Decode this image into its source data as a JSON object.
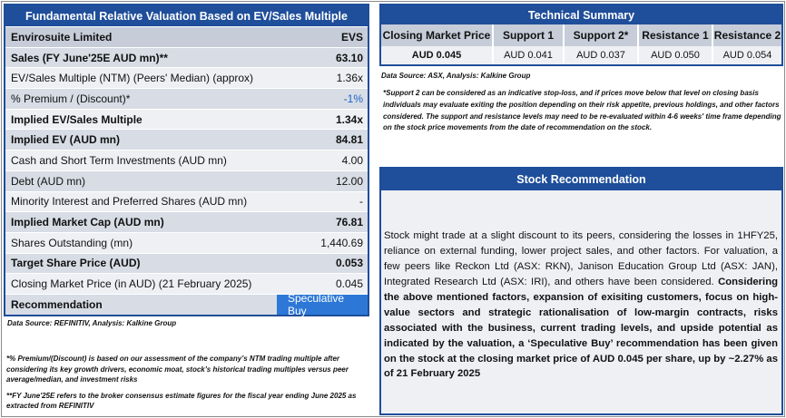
{
  "valuation": {
    "title": "Fundamental Relative Valuation Based on EV/Sales Multiple",
    "company": "Envirosuite Limited",
    "ticker": "EVS",
    "rows": [
      {
        "label": "Sales (FY June'25E AUD mn)**",
        "value": "63.10"
      },
      {
        "label": "EV/Sales Multiple (NTM)  (Peers' Median) (approx)",
        "value": "1.36x"
      },
      {
        "label": "% Premium / (Discount)*",
        "value": "-1%"
      },
      {
        "label": "Implied EV/Sales Multiple",
        "value": "1.34x"
      },
      {
        "label": "Implied EV (AUD mn)",
        "value": "84.81"
      },
      {
        "label": "Cash and Short Term Investments (AUD mn)",
        "value": "4.00"
      },
      {
        "label": "Debt (AUD mn)",
        "value": "12.00"
      },
      {
        "label": "Minority Interest and Preferred Shares (AUD mn)",
        "value": "-"
      },
      {
        "label": "Implied Market Cap (AUD mn)",
        "value": "76.81"
      },
      {
        "label": "Shares Outstanding (mn)",
        "value": "1,440.69"
      },
      {
        "label": "Target Share Price (AUD)",
        "value": "0.053"
      },
      {
        "label": "Closing Market Price (in AUD) (21 February 2025)",
        "value": "0.045"
      }
    ],
    "recommendation_label": "Recommendation",
    "recommendation_value": "Speculative Buy",
    "source": "Data Source: REFINITIV, Analysis: Kalkine Group",
    "note1": "*% Premium/(Discount) is based on our assessment of the company’s NTM trading multiple after considering its key growth drivers, economic moat, stock’s historical trading multiples versus peer average/median, and investment risks",
    "note2": "**FY June'25E refers to the broker consensus estimate figures for the fiscal year ending June 2025 as extracted from REFINITIV"
  },
  "technical": {
    "title": "Technical Summary",
    "headers": [
      "Closing Market Price",
      "Support 1",
      "Support 2*",
      "Resistance 1",
      "Resistance 2"
    ],
    "values": [
      "AUD 0.045",
      "AUD 0.041",
      "AUD 0.037",
      "AUD 0.050",
      "AUD 0.054"
    ],
    "source": "Data Source: ASX, Analysis: Kalkine Group",
    "note": "*Support 2 can be considered as an indicative stop-loss, and if prices move below that level on closing basis individuals may evaluate exiting the position depending on their risk appetite, previous holdings, and other factors considered. The support and resistance levels may need to be re-evaluated within 4-6 weeks' time frame depending on the stock price movements from the date of recommendation on the stock."
  },
  "stock_rec": {
    "title": "Stock Recommendation",
    "text_normal": "Stock might trade at a slight discount to its peers, considering the losses in 1HFY25, reliance on external funding, lower project sales, and other factors. For valuation, a few peers like Reckon Ltd (ASX: RKN), Janison Education Group Ltd (ASX: JAN), Integrated Research Ltd (ASX: IRI), and others have been considered. ",
    "text_bold": "Considering the above mentioned factors, expansion of exisiting customers, focus on high-value sectors and strategic rationalisation of low-margin contracts, risks associated with the business, current trading levels, and upside potential as indicated by the valuation, a ‘Speculative Buy’ recommendation has been given on the stock at the closing market price of AUD 0.045 per share, up by ~2.27% as of 21 February 2025"
  }
}
